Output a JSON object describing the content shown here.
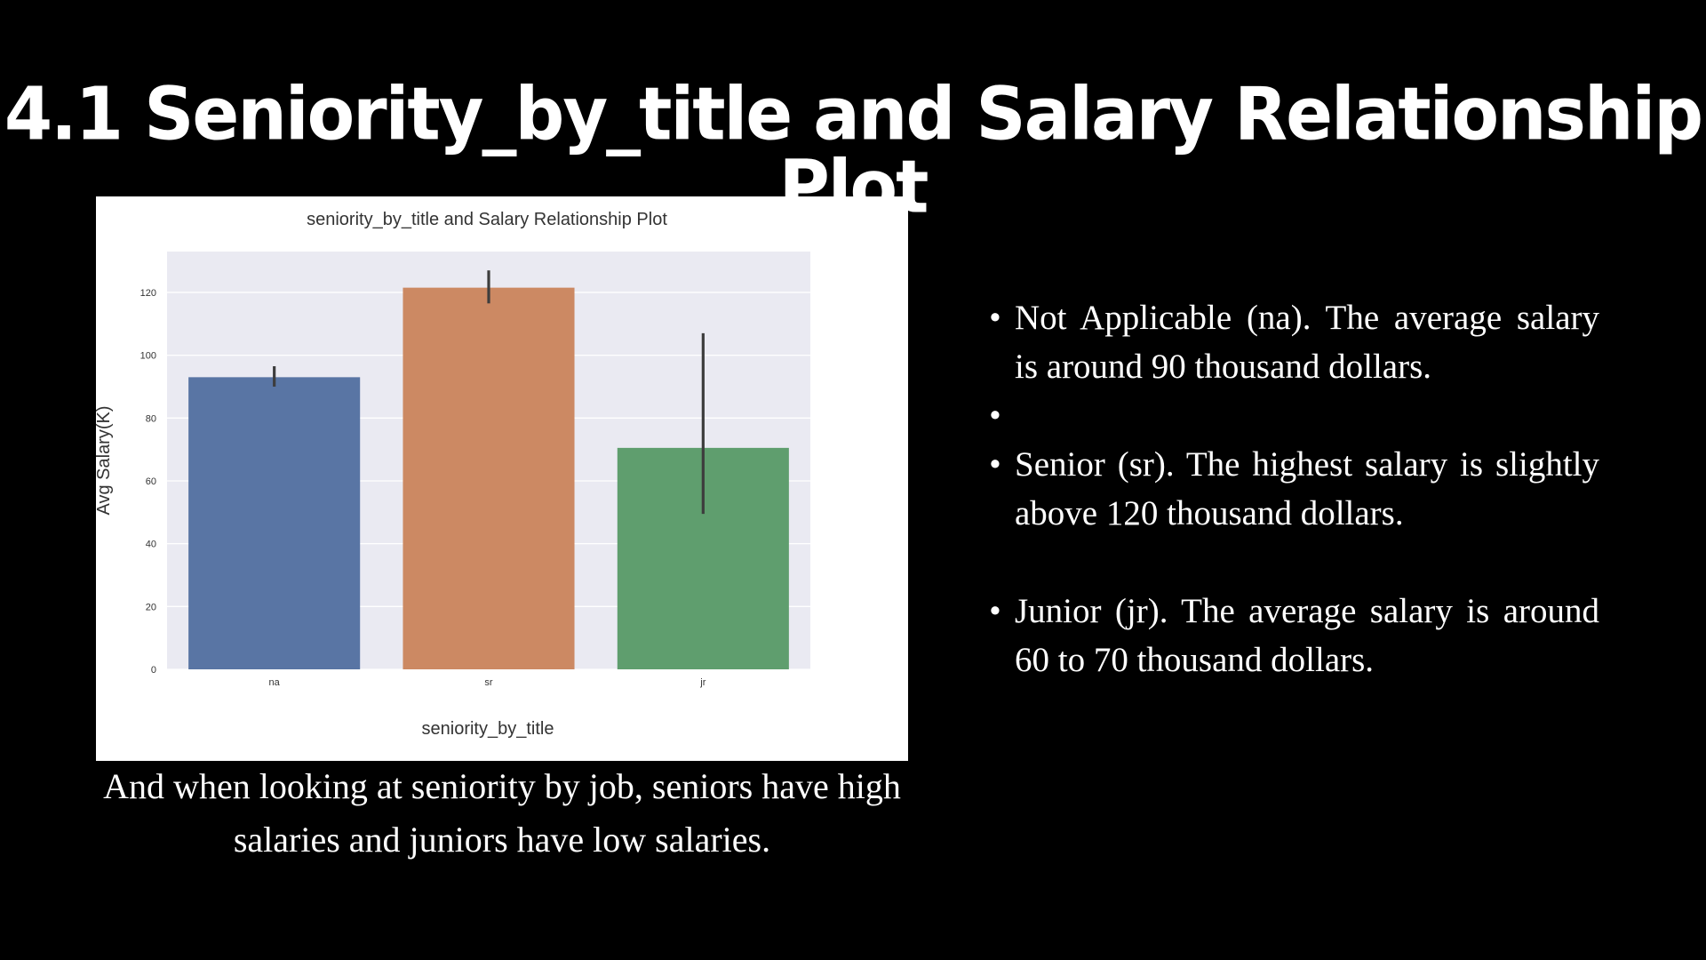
{
  "slide": {
    "title": "4.1 Seniority_by_title and Salary Relationship Plot",
    "caption": "And when looking at seniority by job, seniors have high salaries and juniors have low salaries.",
    "bullets": [
      "Not Applicable (na). The average salary is around 90 thousand dollars.",
      "",
      "Senior (sr). The highest salary is slightly above 120 thousand dollars.",
      "Junior (jr). The average salary is around 60 to 70 thousand dollars."
    ],
    "bullet_symbol": "•"
  },
  "chart_data": {
    "type": "bar",
    "title": "seniority_by_title and Salary Relationship Plot",
    "xlabel": "seniority_by_title",
    "ylabel": "Avg Salary(K)",
    "categories": [
      "na",
      "sr",
      "jr"
    ],
    "values": [
      93,
      121.5,
      70.5
    ],
    "error_bars": [
      [
        90,
        96.5
      ],
      [
        116.5,
        127
      ],
      [
        49.5,
        107
      ]
    ],
    "colors": [
      "#5975a4",
      "#cc8963",
      "#5f9e6e"
    ],
    "ylim": [
      0,
      133
    ],
    "yticks": [
      0,
      20,
      40,
      60,
      80,
      100,
      120
    ],
    "grid": true,
    "plot_background": "#eaeaf2"
  }
}
